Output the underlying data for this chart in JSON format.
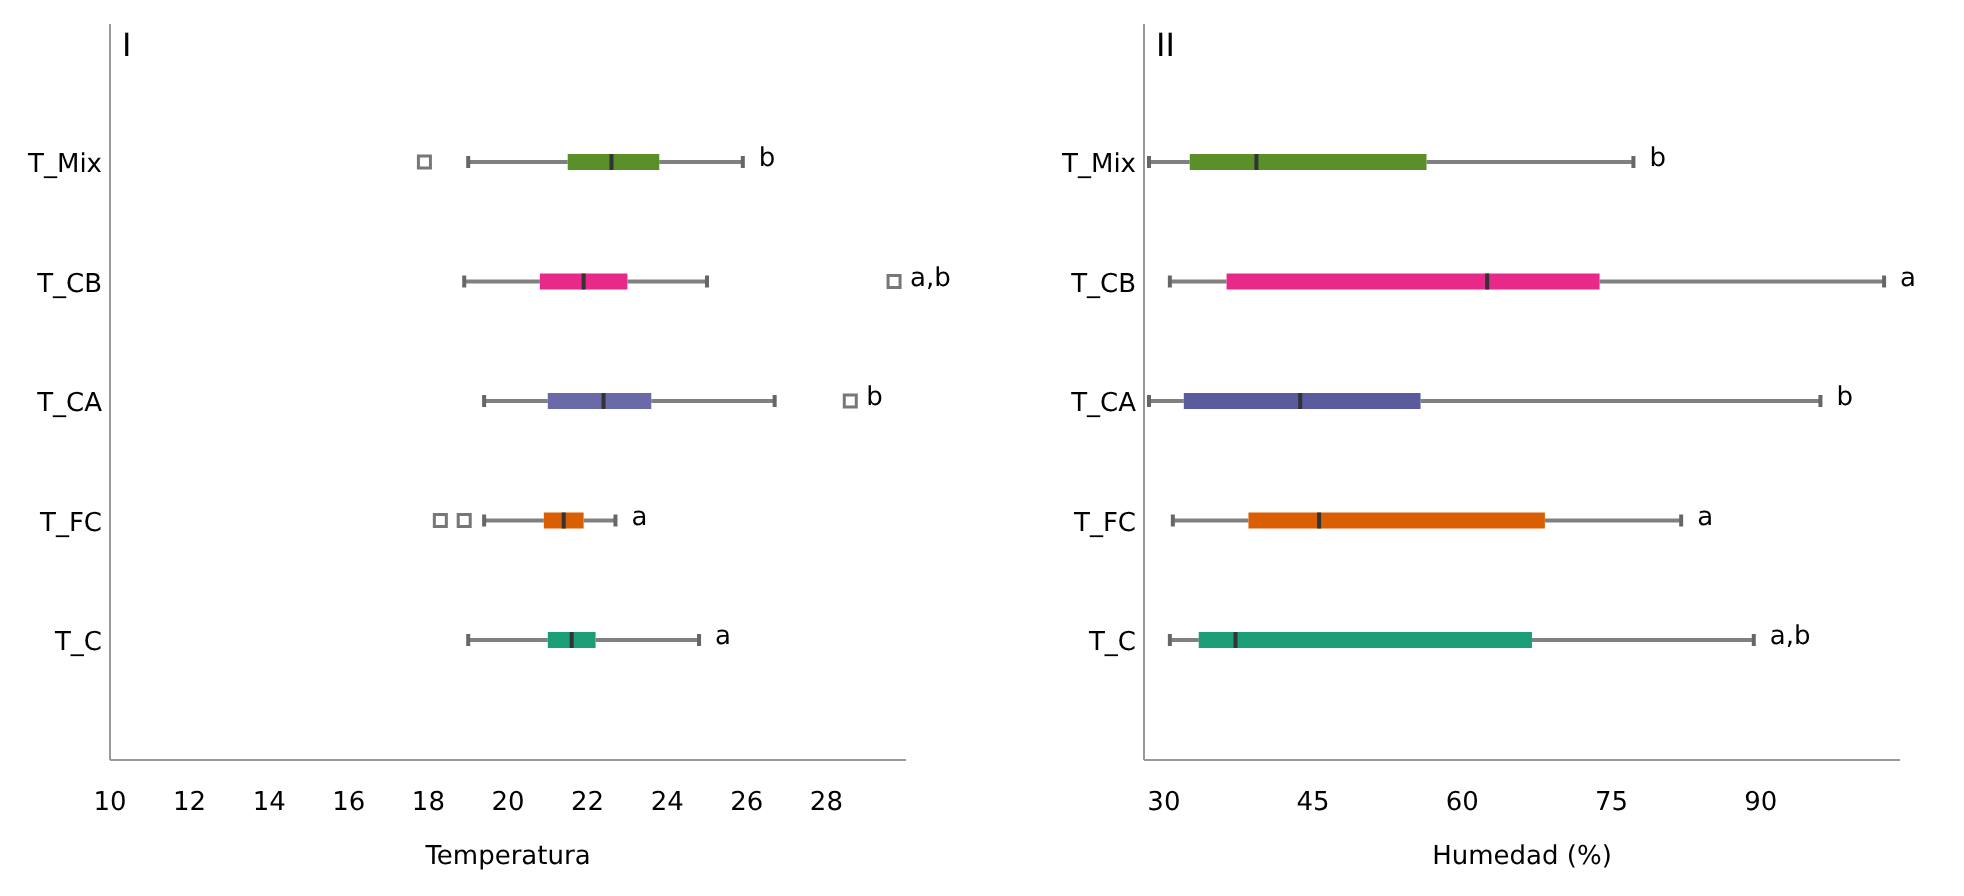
{
  "chart_data": [
    {
      "type": "box",
      "orientation": "horizontal",
      "title": "I",
      "xlabel": "Temperatura",
      "categories": [
        "T_Mix",
        "T_CB",
        "T_CA",
        "T_FC",
        "T_C"
      ],
      "xlim": [
        10,
        30
      ],
      "xticks": [
        10,
        12,
        14,
        16,
        18,
        20,
        22,
        24,
        26,
        28
      ],
      "grid": false,
      "colors": [
        "#5a8f29",
        "#e7298a",
        "#6a6aa8",
        "#d95f02",
        "#1b9e77"
      ],
      "boxes": [
        {
          "low": 19.0,
          "q1": 21.5,
          "median": 22.6,
          "q3": 23.8,
          "high": 25.9,
          "outliers": [
            17.9
          ]
        },
        {
          "low": 18.9,
          "q1": 20.8,
          "median": 21.9,
          "q3": 23.0,
          "high": 25.0,
          "outliers": [
            29.7
          ]
        },
        {
          "low": 19.4,
          "q1": 21.0,
          "median": 22.4,
          "q3": 23.6,
          "high": 26.7,
          "outliers": [
            28.6
          ]
        },
        {
          "low": 19.4,
          "q1": 20.9,
          "median": 21.4,
          "q3": 21.9,
          "high": 22.7,
          "outliers": [
            18.3,
            18.9
          ]
        },
        {
          "low": 19.0,
          "q1": 21.0,
          "median": 21.6,
          "q3": 22.2,
          "high": 24.8
        }
      ],
      "annotations": [
        "b",
        "a,b",
        "b",
        "a",
        "a"
      ]
    },
    {
      "type": "box",
      "orientation": "horizontal",
      "title": "II",
      "xlabel": "Humedad (%)",
      "categories": [
        "T_Mix",
        "T_CB",
        "T_CA",
        "T_FC",
        "T_C"
      ],
      "xlim": [
        28,
        104
      ],
      "xticks": [
        30,
        45,
        60,
        75,
        90
      ],
      "grid": false,
      "colors": [
        "#5a8f29",
        "#e7298a",
        "#5a5a9e",
        "#d95f02",
        "#1b9e77"
      ],
      "boxes": [
        {
          "low": 28.5,
          "q1": 32.6,
          "median": 39.3,
          "q3": 56.4,
          "high": 77.2
        },
        {
          "low": 30.6,
          "q1": 36.3,
          "median": 62.5,
          "q3": 73.8,
          "high": 102.4
        },
        {
          "low": 28.5,
          "q1": 32.0,
          "median": 43.7,
          "q3": 55.8,
          "high": 96.0
        },
        {
          "low": 30.9,
          "q1": 38.5,
          "median": 45.6,
          "q3": 68.3,
          "high": 82.0
        },
        {
          "low": 30.6,
          "q1": 33.5,
          "median": 37.2,
          "q3": 67.0,
          "high": 89.3
        }
      ],
      "annotations": [
        "b",
        "a",
        "b",
        "a",
        "a,b"
      ]
    }
  ]
}
